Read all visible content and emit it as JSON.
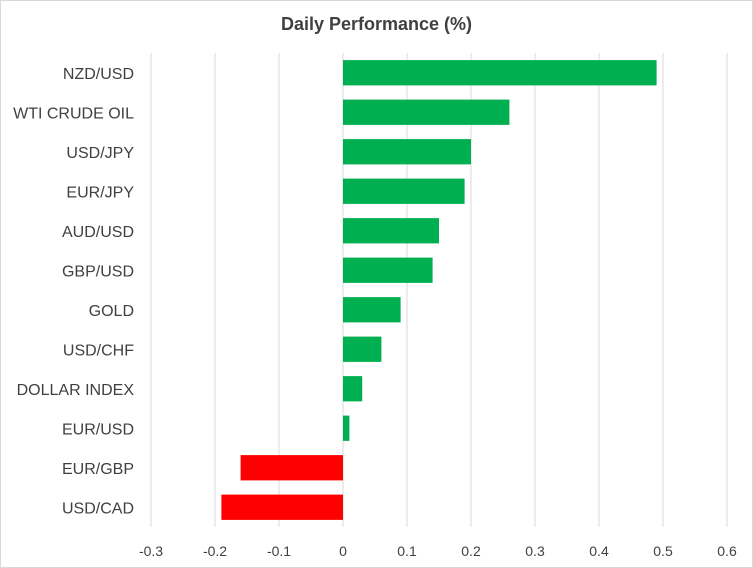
{
  "chart_data": {
    "type": "bar",
    "orientation": "horizontal",
    "title": "Daily Performance  (%)",
    "categories": [
      "NZD/USD",
      "WTI CRUDE OIL",
      "USD/JPY",
      "EUR/JPY",
      "AUD/USD",
      "GBP/USD",
      "GOLD",
      "USD/CHF",
      "DOLLAR INDEX",
      "EUR/USD",
      "EUR/GBP",
      "USD/CAD"
    ],
    "values": [
      0.49,
      0.26,
      0.2,
      0.19,
      0.15,
      0.14,
      0.09,
      0.06,
      0.03,
      0.01,
      -0.16,
      -0.19
    ],
    "xlim": [
      -0.3,
      0.6
    ],
    "xticks": [
      -0.3,
      -0.2,
      -0.1,
      0,
      0.1,
      0.2,
      0.3,
      0.4,
      0.5,
      0.6
    ],
    "xtick_labels": [
      "-0.3",
      "-0.2",
      "-0.1",
      "0",
      "0.1",
      "0.2",
      "0.3",
      "0.4",
      "0.5",
      "0.6"
    ],
    "xlabel": "",
    "ylabel": "",
    "grid": "vertical",
    "legend": "none",
    "colors": {
      "positive": "#00b050",
      "negative": "#ff0000",
      "grid": "#d9d9d9",
      "text": "#404040"
    }
  }
}
